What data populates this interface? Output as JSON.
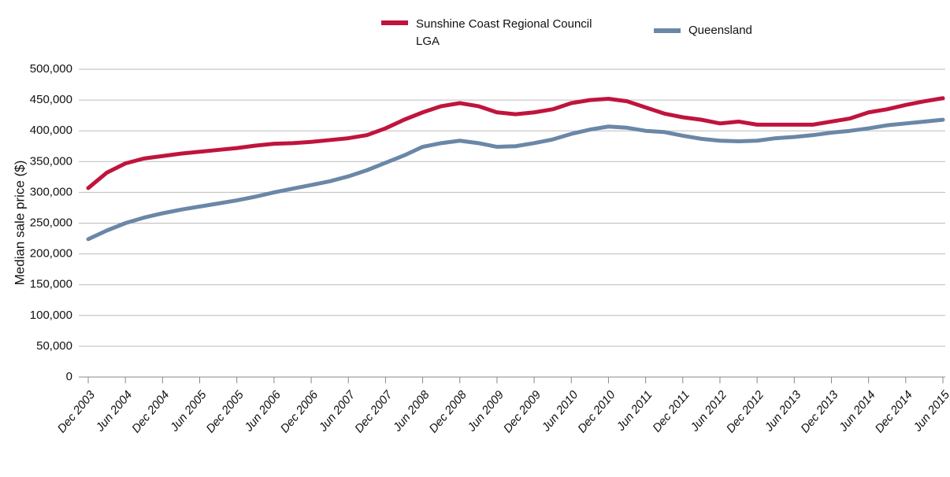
{
  "chart_data": {
    "type": "line",
    "y_label": "Median sale price ($)",
    "categories": [
      "Dec 2003",
      null,
      "Jun 2004",
      null,
      "Dec 2004",
      null,
      "Jun 2005",
      null,
      "Dec 2005",
      null,
      "Jun 2006",
      null,
      "Dec 2006",
      null,
      "Jun 2007",
      null,
      "Dec 2007",
      null,
      "Jun 2008",
      null,
      "Dec 2008",
      null,
      "Jun 2009",
      null,
      "Dec 2009",
      null,
      "Jun 2010",
      null,
      "Dec 2010",
      null,
      "Jun 2011",
      null,
      "Dec 2011",
      null,
      "Jun 2012",
      null,
      "Dec 2012",
      null,
      "Jun 2013",
      null,
      "Dec 2013",
      null,
      "Jun 2014",
      null,
      "Dec 2014",
      null,
      "Jun 2015"
    ],
    "series": [
      {
        "name": "Sunshine Coast Regional Council LGA",
        "color": "#c0143c",
        "values": [
          307000,
          332000,
          347000,
          355000,
          359000,
          363000,
          366000,
          369000,
          372000,
          376000,
          379000,
          380000,
          382000,
          385000,
          388000,
          393000,
          404000,
          418000,
          430000,
          440000,
          445000,
          440000,
          430000,
          427000,
          430000,
          435000,
          445000,
          450000,
          452000,
          448000,
          438000,
          428000,
          422000,
          418000,
          412000,
          415000,
          410000,
          410000,
          410000,
          410000,
          415000,
          420000,
          430000,
          435000,
          442000,
          448000,
          453000
        ]
      },
      {
        "name": "Queensland",
        "color": "#6a87a8",
        "values": [
          224000,
          238000,
          250000,
          259000,
          266000,
          272000,
          277000,
          282000,
          287000,
          293000,
          300000,
          306000,
          312000,
          318000,
          326000,
          336000,
          348000,
          360000,
          374000,
          380000,
          384000,
          380000,
          374000,
          375000,
          380000,
          386000,
          395000,
          402000,
          407000,
          405000,
          400000,
          398000,
          392000,
          387000,
          384000,
          383000,
          384000,
          388000,
          390000,
          393000,
          397000,
          400000,
          404000,
          409000,
          412000,
          415000,
          418000
        ]
      }
    ],
    "ylim": [
      0,
      500000
    ],
    "yticks": [
      {
        "value": 0,
        "label": "0"
      },
      {
        "value": 50000,
        "label": "50,000"
      },
      {
        "value": 100000,
        "label": "100,000"
      },
      {
        "value": 150000,
        "label": "150,000"
      },
      {
        "value": 200000,
        "label": "200,000"
      },
      {
        "value": 250000,
        "label": "250,000"
      },
      {
        "value": 300000,
        "label": "300,000"
      },
      {
        "value": 350000,
        "label": "350,000"
      },
      {
        "value": 400000,
        "label": "400,000"
      },
      {
        "value": 450000,
        "label": "450,000"
      },
      {
        "value": 500000,
        "label": "500,000"
      }
    ],
    "grid": true
  }
}
